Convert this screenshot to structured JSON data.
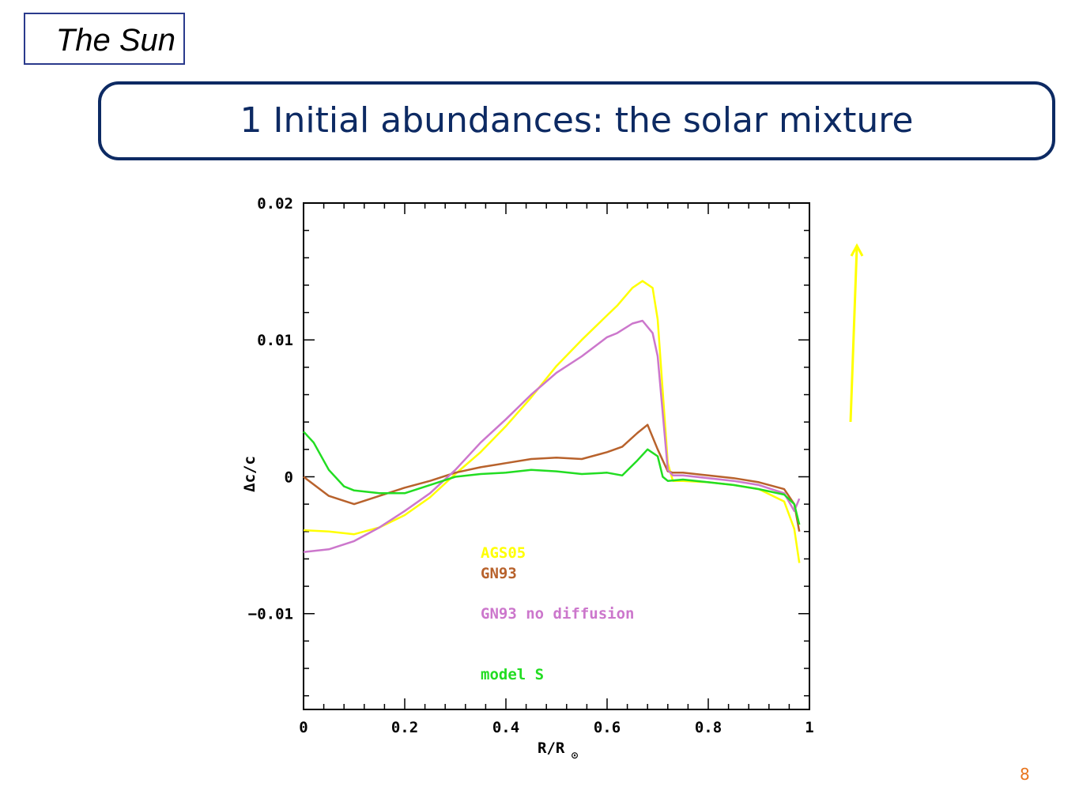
{
  "header": {
    "section": "The Sun",
    "title": "1 Initial abundances: the solar mixture"
  },
  "footer": {
    "page_number": "8"
  },
  "arrow": {
    "color": "#ffff00",
    "direction": "up"
  },
  "chart_data": {
    "type": "line",
    "xlabel": "R/R",
    "xlabel_subscript_symbol": "⊙",
    "ylabel": "Δc/c",
    "xlim": [
      0,
      1
    ],
    "ylim": [
      -0.017,
      0.02
    ],
    "xticks": [
      0,
      0.2,
      0.4,
      0.6,
      0.8,
      1
    ],
    "xtick_labels": [
      "0",
      "0.2",
      "0.4",
      "0.6",
      "0.8",
      "1"
    ],
    "yticks": [
      -0.01,
      0,
      0.01,
      0.02
    ],
    "ytick_labels": [
      "−0.01",
      "0",
      "0.01",
      "0.02"
    ],
    "legend_placement": "lower-center",
    "series": [
      {
        "name": "AGS05",
        "color": "#ffff00",
        "x": [
          0,
          0.05,
          0.1,
          0.15,
          0.2,
          0.25,
          0.3,
          0.35,
          0.4,
          0.45,
          0.5,
          0.55,
          0.6,
          0.62,
          0.65,
          0.67,
          0.69,
          0.7,
          0.72,
          0.73,
          0.75,
          0.8,
          0.85,
          0.9,
          0.95,
          0.97,
          0.98
        ],
        "y": [
          -0.0039,
          -0.004,
          -0.0042,
          -0.0037,
          -0.0028,
          -0.0015,
          0.0002,
          0.0018,
          0.0037,
          0.0058,
          0.0081,
          0.01,
          0.0118,
          0.0125,
          0.0138,
          0.0143,
          0.0138,
          0.0115,
          0.001,
          -0.0003,
          -0.0003,
          -0.0004,
          -0.0006,
          -0.0009,
          -0.0018,
          -0.0038,
          -0.0063
        ]
      },
      {
        "name": "GN93",
        "color": "#b8622c",
        "x": [
          0,
          0.05,
          0.1,
          0.15,
          0.2,
          0.25,
          0.3,
          0.35,
          0.4,
          0.45,
          0.5,
          0.55,
          0.6,
          0.63,
          0.66,
          0.68,
          0.7,
          0.72,
          0.73,
          0.75,
          0.8,
          0.85,
          0.9,
          0.95,
          0.97,
          0.98
        ],
        "y": [
          0,
          -0.0014,
          -0.002,
          -0.0014,
          -0.0008,
          -0.0003,
          0.0003,
          0.0007,
          0.001,
          0.0013,
          0.0014,
          0.0013,
          0.0018,
          0.0022,
          0.0032,
          0.0038,
          0.002,
          0.0004,
          0.0003,
          0.0003,
          0.0001,
          -0.0001,
          -0.0004,
          -0.0009,
          -0.002,
          -0.004
        ]
      },
      {
        "name": "GN93 no diffusion",
        "color": "#cc77cc",
        "x": [
          0,
          0.05,
          0.1,
          0.15,
          0.2,
          0.25,
          0.3,
          0.35,
          0.4,
          0.45,
          0.5,
          0.55,
          0.6,
          0.62,
          0.65,
          0.67,
          0.69,
          0.7,
          0.72,
          0.73,
          0.75,
          0.8,
          0.85,
          0.9,
          0.95,
          0.97,
          0.98
        ],
        "y": [
          -0.0055,
          -0.0053,
          -0.0047,
          -0.0037,
          -0.0025,
          -0.0012,
          0.0005,
          0.0025,
          0.0042,
          0.006,
          0.0076,
          0.0088,
          0.0102,
          0.0105,
          0.0112,
          0.0114,
          0.0105,
          0.0088,
          0.0005,
          0.0001,
          0.0001,
          -0.0001,
          -0.0003,
          -0.0006,
          -0.0012,
          -0.0025,
          -0.0016
        ]
      },
      {
        "name": "model S",
        "color": "#22dd22",
        "x": [
          0,
          0.02,
          0.05,
          0.08,
          0.1,
          0.15,
          0.2,
          0.25,
          0.3,
          0.35,
          0.4,
          0.45,
          0.5,
          0.55,
          0.6,
          0.63,
          0.66,
          0.68,
          0.7,
          0.71,
          0.72,
          0.75,
          0.8,
          0.85,
          0.9,
          0.95,
          0.97,
          0.98
        ],
        "y": [
          0.0033,
          0.0025,
          0.0005,
          -0.0007,
          -0.001,
          -0.0012,
          -0.0012,
          -0.0006,
          0,
          0.0002,
          0.0003,
          0.0005,
          0.0004,
          0.0002,
          0.0003,
          0.0001,
          0.0012,
          0.002,
          0.0015,
          0,
          -0.0003,
          -0.0002,
          -0.0004,
          -0.0006,
          -0.0009,
          -0.0013,
          -0.002,
          -0.0035
        ]
      }
    ]
  }
}
